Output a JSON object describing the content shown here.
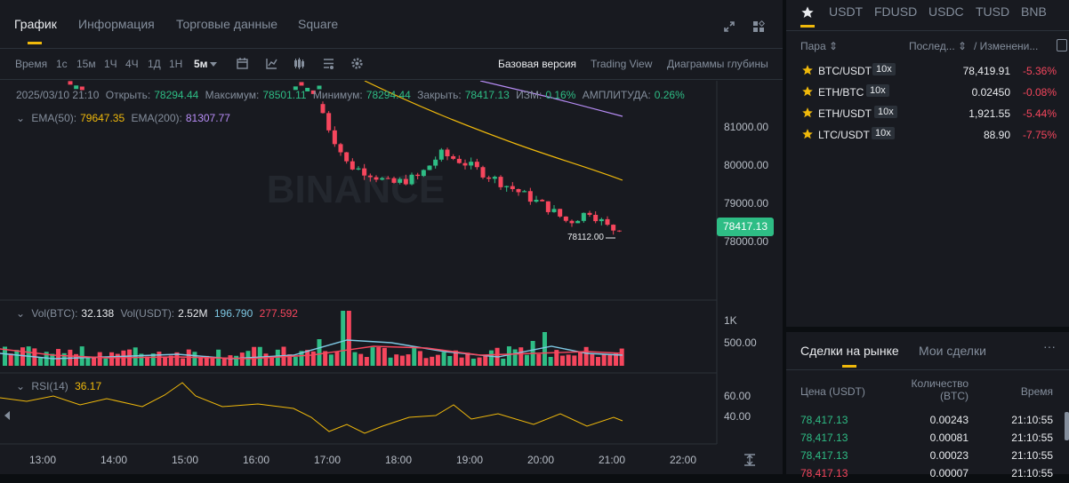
{
  "tabs": [
    "График",
    "Информация",
    "Торговые данные",
    "Square"
  ],
  "toolbar": {
    "time_label": "Время",
    "intervals": [
      "1с",
      "15м",
      "1Ч",
      "4Ч",
      "1Д",
      "1Н"
    ],
    "selected_interval": "5м",
    "views": [
      "Базовая версия",
      "Trading View",
      "Диаграммы глубины"
    ]
  },
  "ohlc": {
    "date": "2025/03/10 21:10",
    "open_label": "Открыть:",
    "open": "78294.44",
    "high_label": "Максимум:",
    "high": "78501.11",
    "low_label": "Минимум:",
    "low": "78294.44",
    "close_label": "Закрыть:",
    "close": "78417.13",
    "chg_label": "ИЗМ:",
    "chg": "0.16%",
    "amp_label": "АМПЛИТУДА:",
    "amp": "0.26%"
  },
  "ema": {
    "ema50_label": "EMA(50):",
    "ema50": "79647.35",
    "ema200_label": "EMA(200):",
    "ema200": "81307.77"
  },
  "price_axis": [
    "81000.00",
    "80000.00",
    "79000.00",
    "78000.00"
  ],
  "current_price": "78417.13",
  "low_marker": "78112.00",
  "watermark": "BINANCE",
  "volume": {
    "vol_btc_label": "Vol(BTC):",
    "vol_btc": "32.138",
    "vol_usdt_label": "Vol(USDT):",
    "vol_usdt": "2.52M",
    "ma1": "196.790",
    "ma2": "277.592",
    "axis": [
      "1K",
      "500.00"
    ]
  },
  "rsi": {
    "label": "RSI(14)",
    "value": "36.17",
    "axis": [
      "60.00",
      "40.00"
    ]
  },
  "time_axis": [
    "13:00",
    "14:00",
    "15:00",
    "16:00",
    "17:00",
    "18:00",
    "19:00",
    "20:00",
    "21:00",
    "22:00"
  ],
  "colors": {
    "up": "#2ebd85",
    "down": "#f6465d",
    "accent": "#f0b90b",
    "ema50": "#f0b90b",
    "ema200": "#b88df7",
    "volma1": "#7ec8e3",
    "volma2": "#f6465d"
  },
  "market_tabs": [
    "USDT",
    "FDUSD",
    "USDC",
    "TUSD",
    "BNB"
  ],
  "market_headers": {
    "pair": "Пара",
    "last": "Послед...",
    "change": "/ Изменени..."
  },
  "pairs": [
    {
      "pair": "BTC/USDT",
      "lev": "10x",
      "last": "78,419.91",
      "chg": "-5.36%"
    },
    {
      "pair": "ETH/BTC",
      "lev": "10x",
      "last": "0.02450",
      "chg": "-0.08%"
    },
    {
      "pair": "ETH/USDT",
      "lev": "10x",
      "last": "1,921.55",
      "chg": "-5.44%"
    },
    {
      "pair": "LTC/USDT",
      "lev": "10x",
      "last": "88.90",
      "chg": "-7.75%"
    }
  ],
  "trades_tabs": [
    "Сделки на рынке",
    "Мои сделки"
  ],
  "trades_headers": {
    "price": "Цена (USDT)",
    "qty1": "Количество",
    "qty2": "(BTC)",
    "time": "Время"
  },
  "trades": [
    {
      "price": "78,417.13",
      "qty": "0.00243",
      "time": "21:10:55"
    },
    {
      "price": "78,417.13",
      "qty": "0.00081",
      "time": "21:10:55"
    },
    {
      "price": "78,417.13",
      "qty": "0.00023",
      "time": "21:10:55"
    },
    {
      "price": "78,417.13",
      "qty": "0.00007",
      "time": "21:10:55"
    }
  ]
}
